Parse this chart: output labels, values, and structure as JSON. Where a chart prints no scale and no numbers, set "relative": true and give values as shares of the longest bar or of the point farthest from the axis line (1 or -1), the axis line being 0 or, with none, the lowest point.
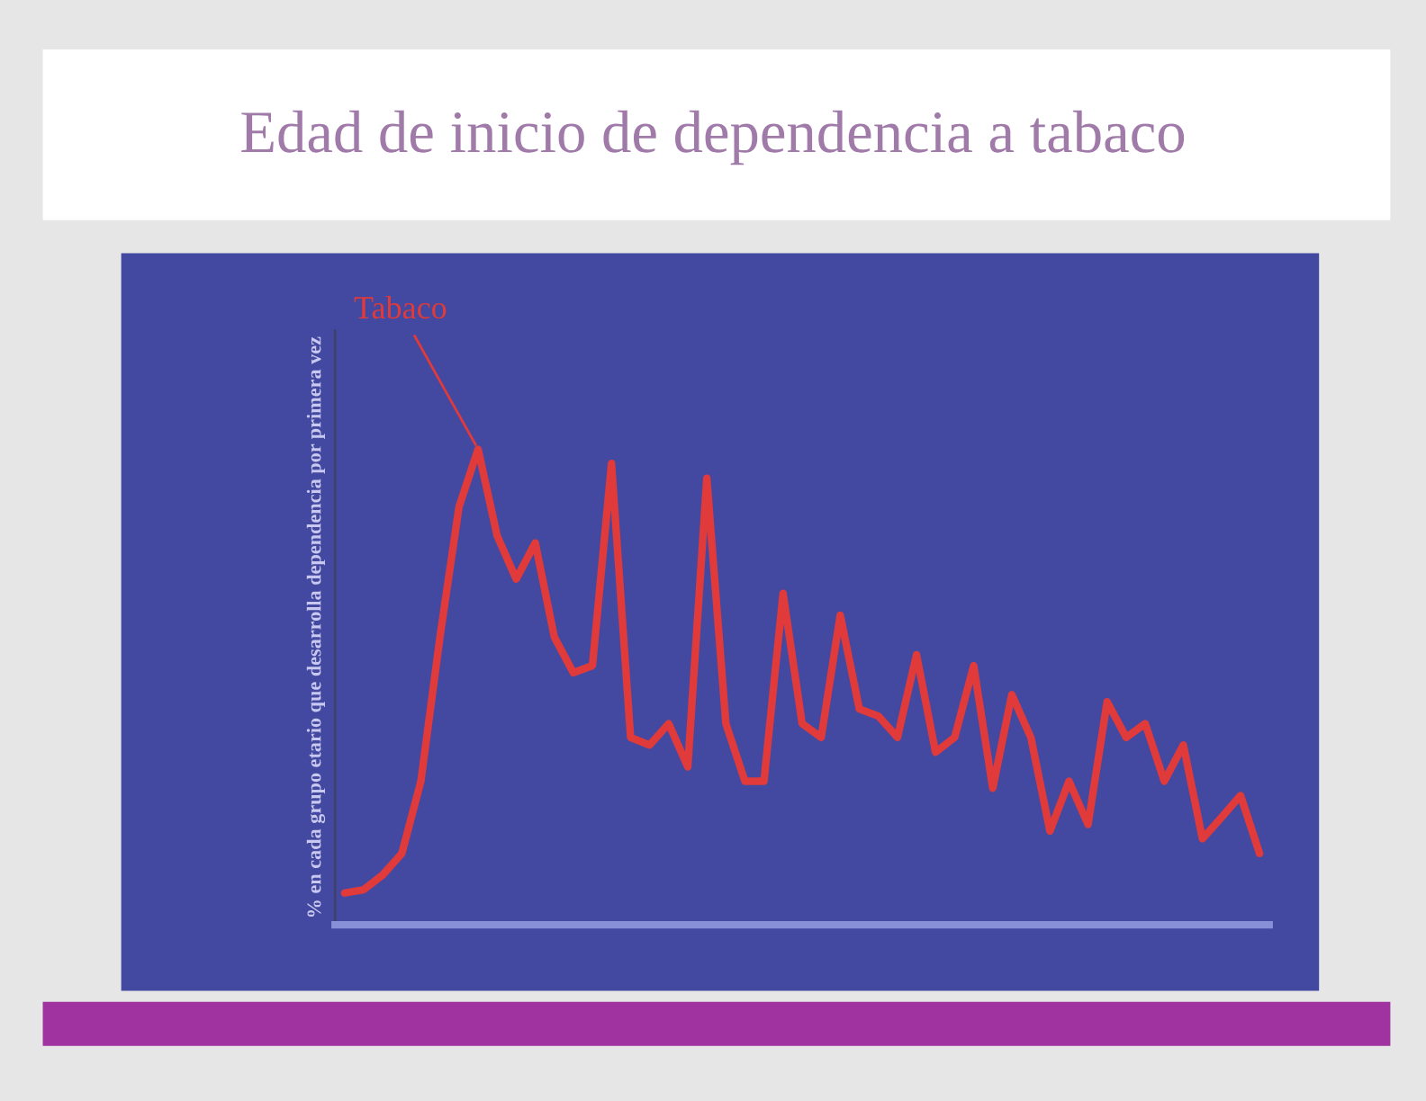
{
  "chart_data": {
    "type": "line",
    "title": "Edad de inicio de dependencia a tabaco",
    "ylabel": "% en cada grupo etario que desarrolla dependencia por primera vez",
    "annotations": [
      "Tabaco"
    ],
    "relative": true,
    "grid": false,
    "marker": "none",
    "line_style": "solid",
    "categories": [
      null,
      null,
      null,
      null,
      null,
      null,
      null,
      null,
      null,
      null,
      null,
      null,
      null,
      null,
      null,
      null,
      null,
      null,
      null,
      null,
      null,
      null,
      null,
      null,
      null,
      null,
      null,
      null,
      null,
      null,
      null,
      null,
      null,
      null,
      null,
      null,
      null,
      null,
      null,
      null,
      null,
      null,
      null,
      null,
      null,
      null,
      null,
      null,
      null
    ],
    "series": [
      {
        "color": "#e03a3a",
        "values": [
          0.067,
          0.074,
          0.105,
          0.15,
          0.302,
          0.605,
          0.879,
          1.0,
          0.818,
          0.727,
          0.803,
          0.605,
          0.53,
          0.545,
          0.97,
          0.394,
          0.378,
          0.423,
          0.332,
          0.939,
          0.423,
          0.302,
          0.302,
          0.697,
          0.423,
          0.394,
          0.651,
          0.454,
          0.439,
          0.394,
          0.568,
          0.363,
          0.394,
          0.545,
          0.287,
          0.484,
          0.394,
          0.197,
          0.302,
          0.211,
          0.469,
          0.394,
          0.423,
          0.302,
          0.378,
          0.181,
          0.226,
          0.272,
          0.15
        ]
      }
    ]
  }
}
